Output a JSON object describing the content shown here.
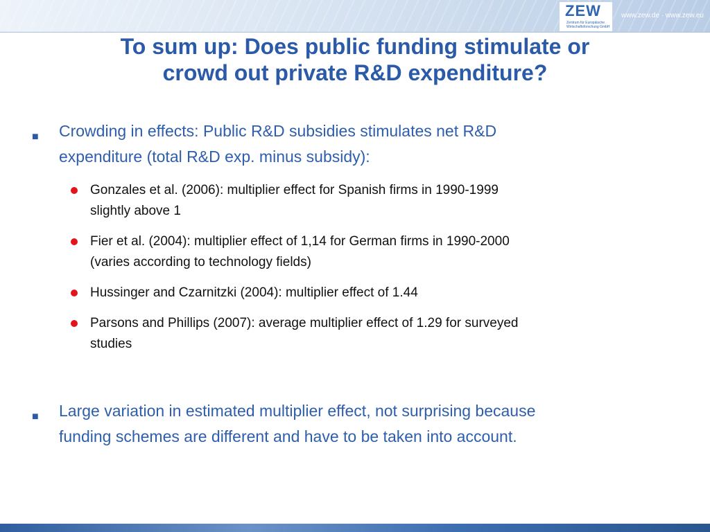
{
  "header": {
    "logo_text": "ZEW",
    "logo_tagline": "Zentrum für Europäische Wirtschaftsforschung GmbH",
    "url_text": "www.zew.de · www.zew.eu"
  },
  "title": {
    "line1": "To sum up: Does public funding stimulate or",
    "line2": "crowd out private R&D expenditure?"
  },
  "bullets": {
    "marker": "■",
    "b1": {
      "line1": "Crowding in effects: Public R&D subsidies stimulates net R&D",
      "line2": "expenditure (total R&D exp. minus subsidy):"
    },
    "sub": [
      {
        "line1": "Gonzales et al. (2006): multiplier effect for Spanish firms in 1990-1999",
        "line2": "slightly above 1"
      },
      {
        "line1": "Fier et al. (2004): multiplier effect of 1,14 for German firms in 1990-2000",
        "line2": "(varies according to technology fields)"
      },
      {
        "line1": "Hussinger and Czarnitzki (2004): multiplier effect of 1.44",
        "line2": ""
      },
      {
        "line1": "Parsons and Phillips (2007): average multiplier effect of 1.29 for surveyed",
        "line2": "studies"
      }
    ],
    "b2": {
      "line1": "Large variation in estimated multiplier effect, not surprising because",
      "line2": "funding schemes are different and have to be taken into account."
    }
  },
  "colors": {
    "title": "#2a5aa8",
    "bullet_text": "#2e5eab",
    "sub_bullet_dot": "#e0161b",
    "sub_text": "#111111"
  }
}
